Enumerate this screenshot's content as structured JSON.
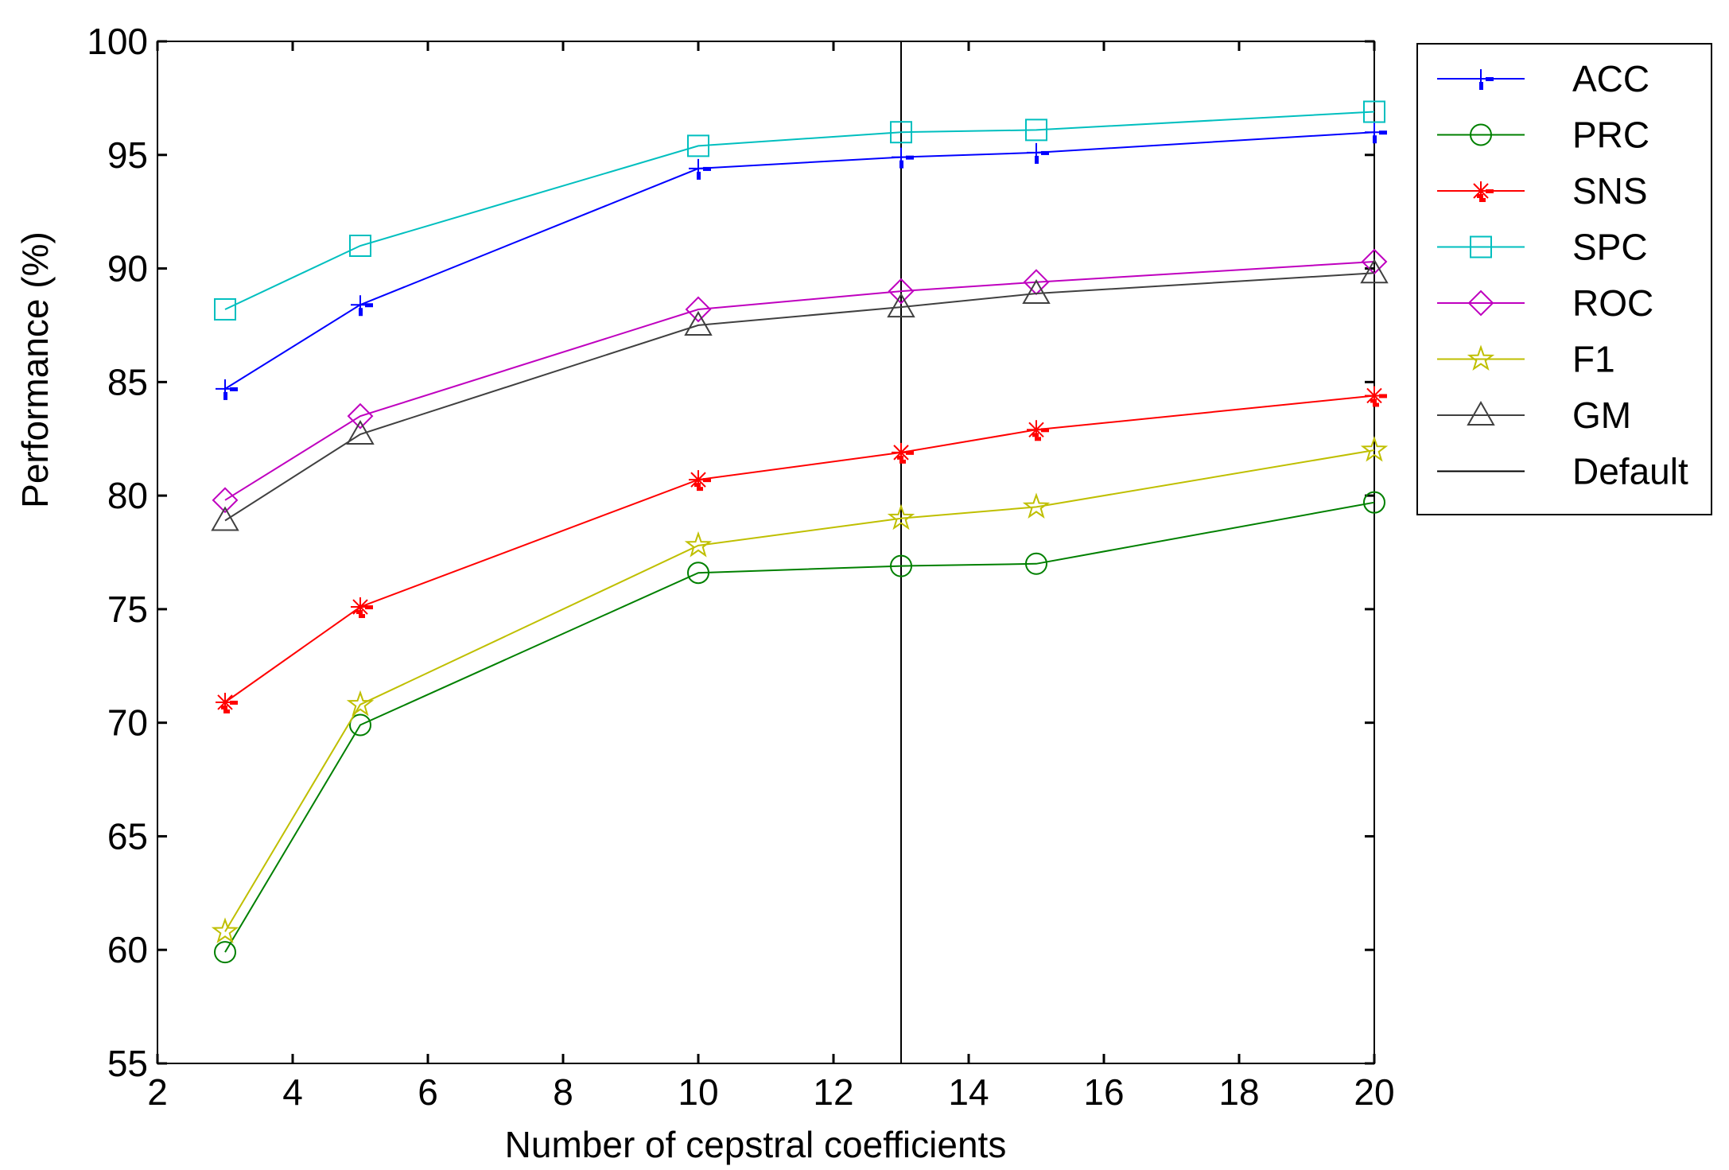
{
  "chart_data": {
    "type": "line",
    "title": "",
    "xlabel": "Number of cepstral coefficients",
    "ylabel": "Performance (%)",
    "xlim": [
      2,
      20
    ],
    "ylim": [
      55,
      100
    ],
    "xticks": [
      2,
      4,
      6,
      8,
      10,
      12,
      14,
      16,
      18,
      20
    ],
    "yticks": [
      55,
      60,
      65,
      70,
      75,
      80,
      85,
      90,
      95,
      100
    ],
    "x": [
      3,
      5,
      10,
      13,
      15,
      20
    ],
    "grid": false,
    "legend_position": "outside-top-right",
    "reference_line": {
      "name": "Default",
      "x": 13,
      "color": "#000000"
    },
    "series": [
      {
        "name": "ACC",
        "color": "#0000ff",
        "marker": "plus",
        "values": [
          84.7,
          88.4,
          94.4,
          94.9,
          95.1,
          96.0
        ]
      },
      {
        "name": "PRC",
        "color": "#008000",
        "marker": "circle",
        "values": [
          59.9,
          69.9,
          76.6,
          76.9,
          77.0,
          79.7
        ]
      },
      {
        "name": "SNS",
        "color": "#ff0000",
        "marker": "asterisk",
        "values": [
          70.9,
          75.1,
          80.7,
          81.9,
          82.9,
          84.4
        ]
      },
      {
        "name": "SPC",
        "color": "#00bfbf",
        "marker": "square",
        "values": [
          88.2,
          91.0,
          95.4,
          96.0,
          96.1,
          96.9
        ]
      },
      {
        "name": "ROC",
        "color": "#bf00bf",
        "marker": "diamond",
        "values": [
          79.8,
          83.5,
          88.2,
          89.0,
          89.4,
          90.3
        ]
      },
      {
        "name": "F1",
        "color": "#bfbf00",
        "marker": "star",
        "values": [
          60.8,
          70.8,
          77.8,
          79.0,
          79.5,
          82.0
        ]
      },
      {
        "name": "GM",
        "color": "#404040",
        "marker": "triangle",
        "values": [
          78.9,
          82.7,
          87.5,
          88.3,
          88.9,
          89.8
        ]
      }
    ]
  }
}
